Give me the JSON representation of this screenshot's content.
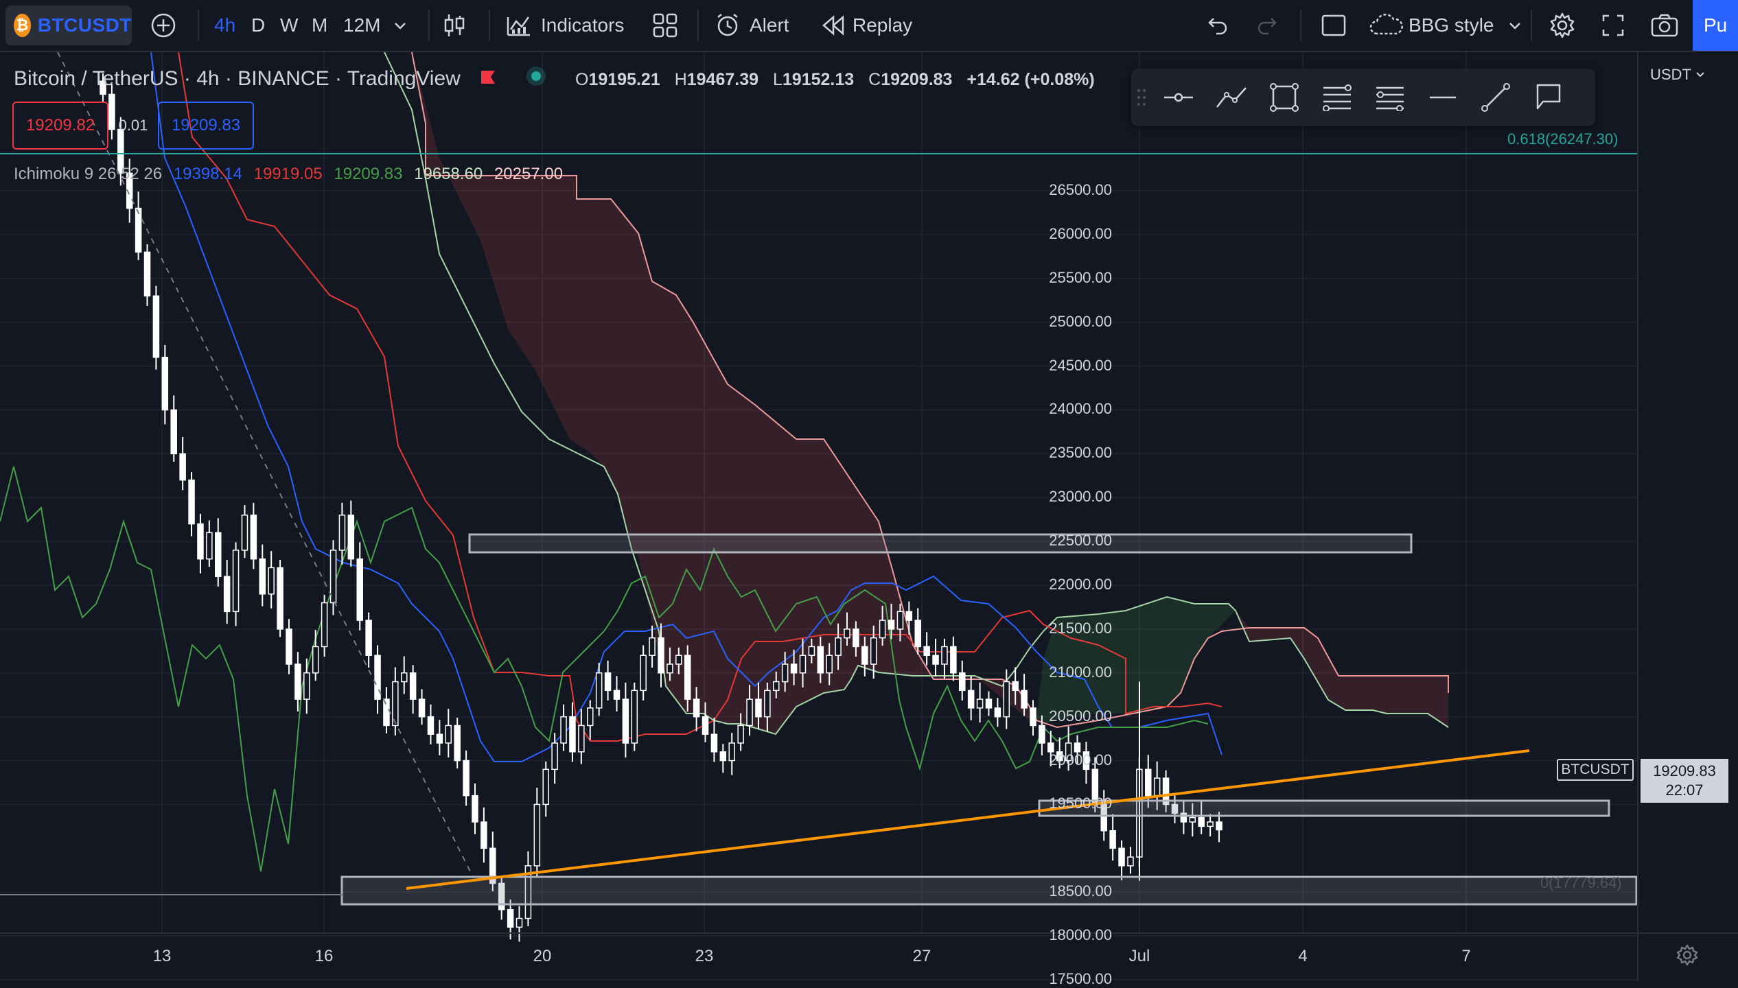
{
  "topbar": {
    "symbol": "BTCUSDT",
    "coin_glyph": "₿",
    "add_glyph": "+",
    "intervals": [
      "4h",
      "D",
      "W",
      "M",
      "12M"
    ],
    "active_interval": "4h",
    "indicators_label": "Indicators",
    "alert_label": "Alert",
    "replay_label": "Replay",
    "style_label": "BBG style",
    "publish_label": "Pu",
    "colors": {
      "active": "#2962ff",
      "bg": "#131722"
    }
  },
  "legend": {
    "title": "Bitcoin / TetherUS · 4h · BINANCE · TradingView",
    "ohlc_o_key": "O",
    "ohlc_o": "19195.21",
    "ohlc_h_key": "H",
    "ohlc_h": "19467.39",
    "ohlc_l_key": "L",
    "ohlc_l": "19152.13",
    "ohlc_c_key": "C",
    "ohlc_c": "19209.83",
    "change": "+14.62 (+0.08%)",
    "bid": "19209.82",
    "spread": "0.01",
    "ask": "19209.83"
  },
  "ichimoku": {
    "label": "Ichimoku 9 26 52 26",
    "v1": "19398.14",
    "v2": "19919.05",
    "v3": "19209.83",
    "v4": "19658.60",
    "v5": "20257.00",
    "colors": {
      "conversion": "#2962ff",
      "base": "#e53935",
      "lagging": "#43a047",
      "spanA": "#a5d6a7",
      "spanB": "#ef9a9a"
    }
  },
  "axis": {
    "currency": "USDT",
    "y_labels": [
      "26500.00",
      "26000.00",
      "25500.00",
      "25000.00",
      "24500.00",
      "24000.00",
      "23500.00",
      "23000.00",
      "22500.00",
      "22000.00",
      "21500.00",
      "21000.00",
      "20500.00",
      "20000.00",
      "19500.00",
      "18500.00",
      "18000.00",
      "17500.00"
    ],
    "x_labels": [
      "13",
      "16",
      "20",
      "23",
      "27",
      "Jul",
      "4",
      "7"
    ],
    "fib_label": "0.618(26247.30)",
    "low_label": "0(17779.64)",
    "current_symbol": "BTCUSDT",
    "current_price": "19209.83",
    "countdown": "22:07"
  },
  "chart_data": {
    "type": "candlestick",
    "symbol": "BTCUSDT",
    "interval": "4h",
    "ylim": [
      17400,
      26700
    ],
    "last_close": 19209.83,
    "support_zones": [
      [
        21760,
        21980
      ],
      [
        18680,
        18840
      ],
      [
        17680,
        18000
      ]
    ],
    "trendline": [
      [
        17760,
        "Jun 17"
      ],
      [
        19500,
        "Jul 8"
      ]
    ]
  }
}
